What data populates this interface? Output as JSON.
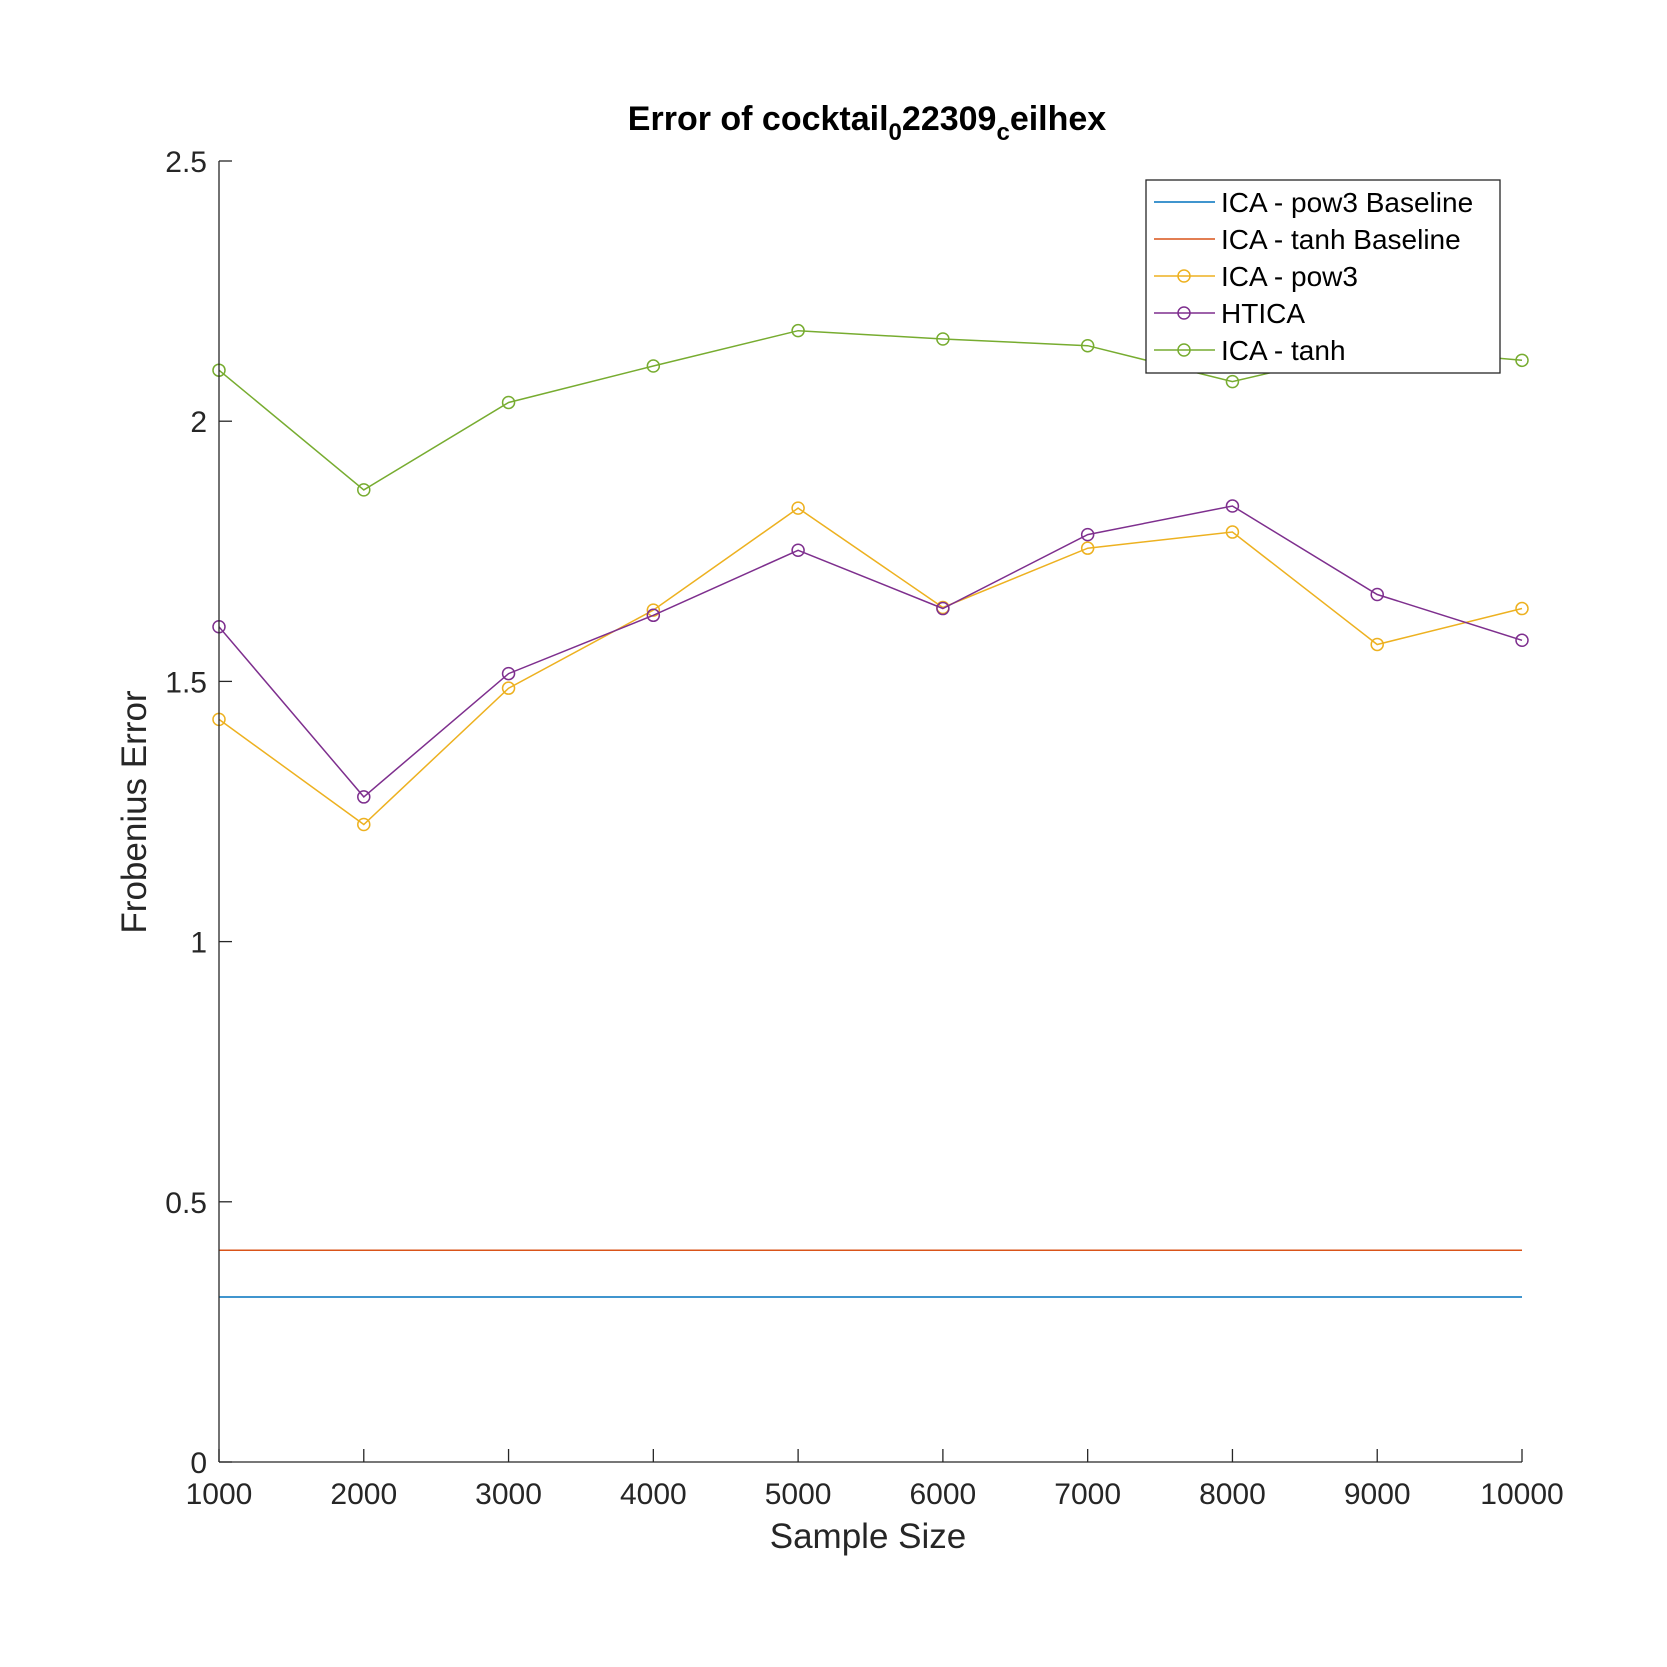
{
  "chart_data": {
    "type": "line",
    "title": "Error of cocktail",
    "title_sub1": "0",
    "title_mid": "22309",
    "title_sub2": "c",
    "title_end": "eilhex",
    "xlabel": "Sample Size",
    "ylabel": "Frobenius Error",
    "xlim": [
      1000,
      10000
    ],
    "ylim": [
      0,
      2.5
    ],
    "x_ticks": [
      "1000",
      "2000",
      "3000",
      "4000",
      "5000",
      "6000",
      "7000",
      "8000",
      "9000",
      "10000"
    ],
    "y_ticks": [
      "0",
      "0.5",
      "1",
      "1.5",
      "2",
      "2.5"
    ],
    "grid": false,
    "legend_position": "top-right",
    "x": [
      1000,
      2000,
      3000,
      4000,
      5000,
      6000,
      7000,
      8000,
      9000,
      10000
    ],
    "series": [
      {
        "name": "ICA - pow3 Baseline",
        "color": "#0072BD",
        "marker": "none",
        "values": [
          0.317,
          0.317,
          0.317,
          0.317,
          0.317,
          0.317,
          0.317,
          0.317,
          0.317,
          0.317
        ]
      },
      {
        "name": "ICA - tanh Baseline",
        "color": "#D95319",
        "marker": "none",
        "values": [
          0.407,
          0.407,
          0.407,
          0.407,
          0.407,
          0.407,
          0.407,
          0.407,
          0.407,
          0.407
        ]
      },
      {
        "name": "ICA - pow3",
        "color": "#EDB120",
        "marker": "circle",
        "values": [
          1.427,
          1.225,
          1.487,
          1.637,
          1.833,
          1.642,
          1.756,
          1.787,
          1.571,
          1.64
        ]
      },
      {
        "name": "HTICA",
        "color": "#7E2F8E",
        "marker": "circle",
        "values": [
          1.605,
          1.278,
          1.515,
          1.627,
          1.752,
          1.64,
          1.782,
          1.837,
          1.667,
          1.579
        ]
      },
      {
        "name": "ICA - tanh",
        "color": "#77AC30",
        "marker": "circle",
        "values": [
          2.098,
          1.868,
          2.036,
          2.106,
          2.174,
          2.158,
          2.145,
          2.076,
          2.141,
          2.117
        ]
      }
    ]
  }
}
